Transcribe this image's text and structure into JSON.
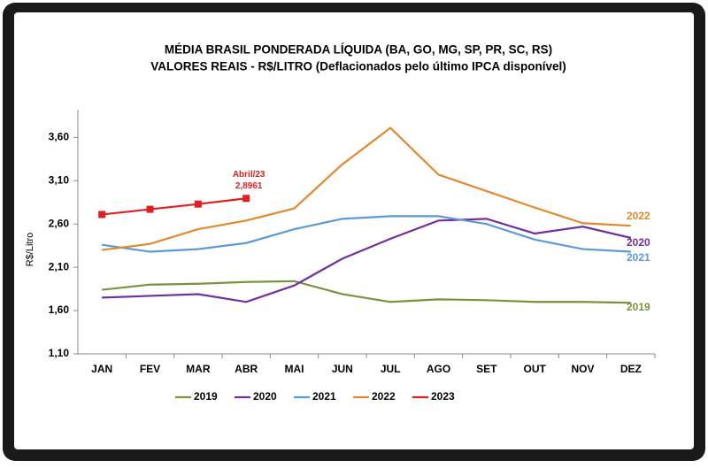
{
  "chart_data": {
    "type": "line",
    "title": "MÉDIA BRASIL PONDERADA LÍQUIDA (BA, GO, MG, SP, PR, SC, RS)",
    "subtitle": "VALORES REAIS - R$/LITRO (Deflacionados  pelo último IPCA disponível)",
    "y_label": "R$/Litro",
    "annotation": "Abril/23",
    "categories": [
      "JAN",
      "FEV",
      "MAR",
      "ABR",
      "MAI",
      "JUN",
      "JUL",
      "AGO",
      "SET",
      "OUT",
      "NOV",
      "DEZ"
    ],
    "ylim": [
      1.1,
      3.9
    ],
    "yticks": [
      {
        "value": 1.1,
        "label": "1,10"
      },
      {
        "value": 1.6,
        "label": "1,60"
      },
      {
        "value": 2.1,
        "label": "2,10"
      },
      {
        "value": 2.6,
        "label": "2,60"
      },
      {
        "value": 3.1,
        "label": "3,10"
      },
      {
        "value": 3.6,
        "label": "3,60"
      }
    ],
    "grid": false,
    "legend": "bottom",
    "series": [
      {
        "name": "2019",
        "color": "#77933c",
        "values": [
          1.84,
          1.9,
          1.91,
          1.93,
          1.94,
          1.79,
          1.7,
          1.73,
          1.72,
          1.7,
          1.7,
          1.69
        ]
      },
      {
        "name": "2020",
        "color": "#7030a0",
        "values": [
          1.75,
          1.77,
          1.79,
          1.7,
          1.89,
          2.2,
          2.43,
          2.64,
          2.66,
          2.49,
          2.57,
          2.44
        ]
      },
      {
        "name": "2021",
        "color": "#5b9bd5",
        "values": [
          2.36,
          2.28,
          2.31,
          2.38,
          2.54,
          2.66,
          2.69,
          2.69,
          2.6,
          2.42,
          2.31,
          2.28
        ]
      },
      {
        "name": "2022",
        "color": "#e3892e",
        "values": [
          2.3,
          2.37,
          2.54,
          2.64,
          2.78,
          3.29,
          3.71,
          3.17,
          2.98,
          2.79,
          2.61,
          2.58
        ]
      },
      {
        "name": "2023",
        "color": "#e02020",
        "values": [
          2.71,
          2.77,
          2.83,
          2.8961,
          null,
          null,
          null,
          null,
          null,
          null,
          null,
          null
        ],
        "value_labels": [
          null,
          null,
          null,
          "2,8961",
          null,
          null,
          null,
          null,
          null,
          null,
          null,
          null
        ]
      }
    ]
  }
}
